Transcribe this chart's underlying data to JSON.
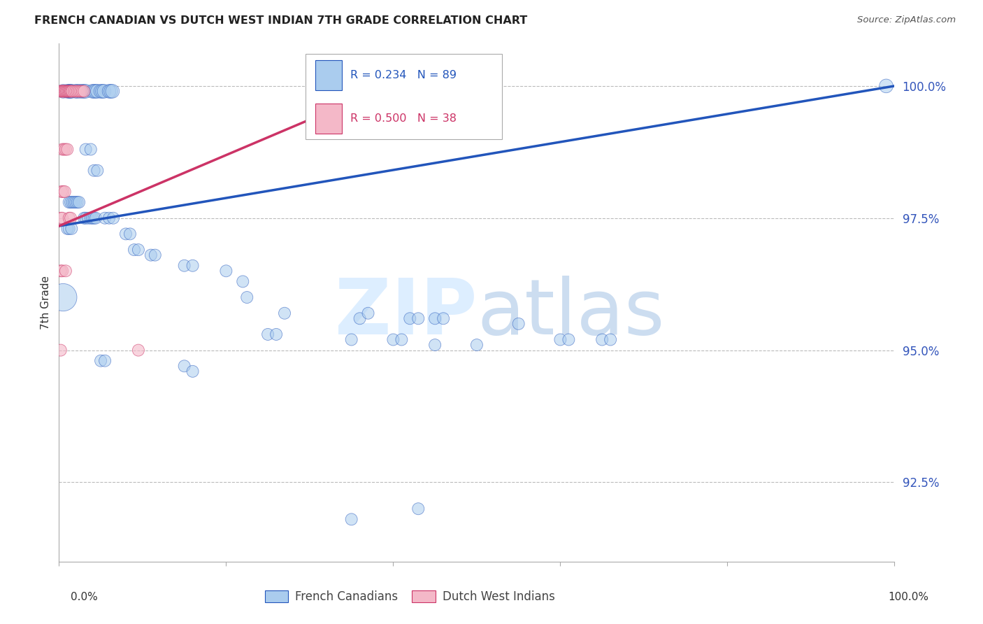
{
  "title": "FRENCH CANADIAN VS DUTCH WEST INDIAN 7TH GRADE CORRELATION CHART",
  "source": "Source: ZipAtlas.com",
  "ylabel": "7th Grade",
  "ytick_labels": [
    "92.5%",
    "95.0%",
    "97.5%",
    "100.0%"
  ],
  "ytick_values": [
    0.925,
    0.95,
    0.975,
    1.0
  ],
  "xmin": 0.0,
  "xmax": 1.0,
  "ymin": 0.91,
  "ymax": 1.008,
  "legend_label_blue": "French Canadians",
  "legend_label_pink": "Dutch West Indians",
  "blue_face_color": "#aaccee",
  "pink_face_color": "#f4b8c8",
  "trendline_blue_color": "#2255bb",
  "trendline_pink_color": "#cc3366",
  "blue_trendline_x": [
    0.0,
    1.0
  ],
  "blue_trendline_y": [
    0.9735,
    1.0
  ],
  "pink_trendline_x": [
    0.0,
    0.38
  ],
  "pink_trendline_y": [
    0.9735,
    0.999
  ],
  "blue_pts": [
    [
      0.005,
      0.999
    ],
    [
      0.01,
      0.999
    ],
    [
      0.012,
      0.999
    ],
    [
      0.013,
      0.999
    ],
    [
      0.014,
      0.999
    ],
    [
      0.015,
      0.999
    ],
    [
      0.02,
      0.999
    ],
    [
      0.022,
      0.999
    ],
    [
      0.025,
      0.999
    ],
    [
      0.028,
      0.999
    ],
    [
      0.03,
      0.999
    ],
    [
      0.032,
      0.999
    ],
    [
      0.04,
      0.999
    ],
    [
      0.042,
      0.999
    ],
    [
      0.044,
      0.999
    ],
    [
      0.046,
      0.999
    ],
    [
      0.05,
      0.999
    ],
    [
      0.052,
      0.999
    ],
    [
      0.054,
      0.999
    ],
    [
      0.06,
      0.999
    ],
    [
      0.062,
      0.999
    ],
    [
      0.064,
      0.999
    ],
    [
      0.032,
      0.988
    ],
    [
      0.038,
      0.988
    ],
    [
      0.042,
      0.984
    ],
    [
      0.046,
      0.984
    ],
    [
      0.012,
      0.978
    ],
    [
      0.014,
      0.978
    ],
    [
      0.016,
      0.978
    ],
    [
      0.018,
      0.978
    ],
    [
      0.02,
      0.978
    ],
    [
      0.022,
      0.978
    ],
    [
      0.024,
      0.978
    ],
    [
      0.03,
      0.975
    ],
    [
      0.032,
      0.975
    ],
    [
      0.035,
      0.975
    ],
    [
      0.038,
      0.975
    ],
    [
      0.04,
      0.975
    ],
    [
      0.042,
      0.975
    ],
    [
      0.044,
      0.975
    ],
    [
      0.055,
      0.975
    ],
    [
      0.06,
      0.975
    ],
    [
      0.065,
      0.975
    ],
    [
      0.01,
      0.973
    ],
    [
      0.012,
      0.973
    ],
    [
      0.015,
      0.973
    ],
    [
      0.08,
      0.972
    ],
    [
      0.085,
      0.972
    ],
    [
      0.09,
      0.969
    ],
    [
      0.095,
      0.969
    ],
    [
      0.11,
      0.968
    ],
    [
      0.115,
      0.968
    ],
    [
      0.15,
      0.966
    ],
    [
      0.16,
      0.966
    ],
    [
      0.2,
      0.965
    ],
    [
      0.22,
      0.963
    ],
    [
      0.225,
      0.96
    ],
    [
      0.27,
      0.957
    ],
    [
      0.36,
      0.956
    ],
    [
      0.37,
      0.957
    ],
    [
      0.42,
      0.956
    ],
    [
      0.43,
      0.956
    ],
    [
      0.45,
      0.956
    ],
    [
      0.46,
      0.956
    ],
    [
      0.005,
      0.96
    ],
    [
      0.25,
      0.953
    ],
    [
      0.26,
      0.953
    ],
    [
      0.4,
      0.952
    ],
    [
      0.41,
      0.952
    ],
    [
      0.55,
      0.955
    ],
    [
      0.6,
      0.952
    ],
    [
      0.61,
      0.952
    ],
    [
      0.65,
      0.952
    ],
    [
      0.66,
      0.952
    ],
    [
      0.05,
      0.948
    ],
    [
      0.055,
      0.948
    ],
    [
      0.15,
      0.947
    ],
    [
      0.16,
      0.946
    ],
    [
      0.35,
      0.952
    ],
    [
      0.45,
      0.951
    ],
    [
      0.5,
      0.951
    ],
    [
      0.99,
      1.0
    ],
    [
      0.35,
      0.918
    ],
    [
      0.43,
      0.92
    ]
  ],
  "blue_sizes": [
    200,
    200,
    200,
    200,
    200,
    200,
    200,
    200,
    200,
    200,
    200,
    200,
    200,
    200,
    200,
    200,
    200,
    200,
    200,
    200,
    200,
    200,
    150,
    150,
    150,
    150,
    150,
    150,
    150,
    150,
    150,
    150,
    150,
    150,
    150,
    150,
    150,
    150,
    150,
    150,
    150,
    150,
    150,
    150,
    150,
    150,
    150,
    150,
    150,
    150,
    150,
    150,
    150,
    150,
    150,
    150,
    150,
    150,
    150,
    150,
    150,
    150,
    150,
    150,
    800,
    150,
    150,
    150,
    150,
    150,
    150,
    150,
    150,
    150,
    150,
    150,
    150,
    150,
    150,
    150,
    150,
    200,
    150,
    150
  ],
  "pink_pts": [
    [
      0.002,
      0.999
    ],
    [
      0.003,
      0.999
    ],
    [
      0.004,
      0.999
    ],
    [
      0.005,
      0.999
    ],
    [
      0.006,
      0.999
    ],
    [
      0.007,
      0.999
    ],
    [
      0.008,
      0.999
    ],
    [
      0.009,
      0.999
    ],
    [
      0.01,
      0.999
    ],
    [
      0.011,
      0.999
    ],
    [
      0.012,
      0.999
    ],
    [
      0.013,
      0.999
    ],
    [
      0.014,
      0.999
    ],
    [
      0.015,
      0.999
    ],
    [
      0.016,
      0.999
    ],
    [
      0.018,
      0.999
    ],
    [
      0.02,
      0.999
    ],
    [
      0.022,
      0.999
    ],
    [
      0.024,
      0.999
    ],
    [
      0.026,
      0.999
    ],
    [
      0.028,
      0.999
    ],
    [
      0.03,
      0.999
    ],
    [
      0.004,
      0.988
    ],
    [
      0.006,
      0.988
    ],
    [
      0.008,
      0.988
    ],
    [
      0.01,
      0.988
    ],
    [
      0.003,
      0.98
    ],
    [
      0.005,
      0.98
    ],
    [
      0.007,
      0.98
    ],
    [
      0.002,
      0.975
    ],
    [
      0.004,
      0.975
    ],
    [
      0.012,
      0.975
    ],
    [
      0.014,
      0.975
    ],
    [
      0.002,
      0.965
    ],
    [
      0.004,
      0.965
    ],
    [
      0.008,
      0.965
    ],
    [
      0.002,
      0.95
    ],
    [
      0.095,
      0.95
    ]
  ],
  "pink_sizes": [
    150,
    150,
    150,
    150,
    150,
    150,
    150,
    150,
    150,
    150,
    150,
    150,
    150,
    150,
    150,
    150,
    150,
    150,
    150,
    150,
    150,
    150,
    150,
    150,
    150,
    150,
    150,
    150,
    150,
    150,
    150,
    150,
    150,
    150,
    150,
    150,
    150,
    150
  ]
}
